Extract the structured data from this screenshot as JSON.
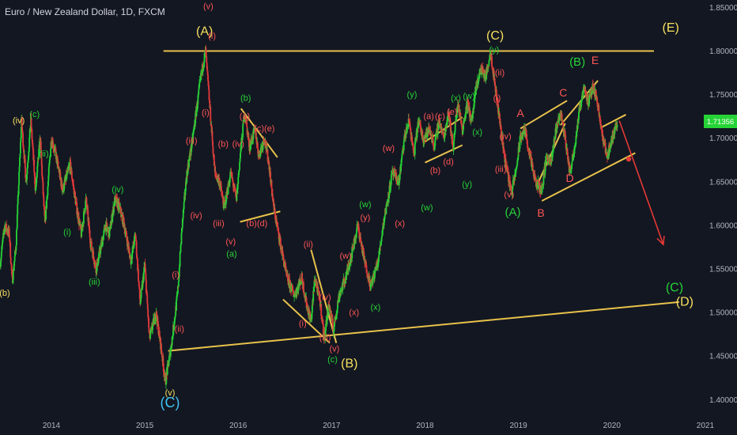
{
  "header": {
    "symbol_title": "Euro / New Zealand Dollar, 1D, FXCM"
  },
  "colors": {
    "background": "#131722",
    "up": "#26d336",
    "down": "#e23b3b",
    "trendline": "#e8c24b",
    "price_tag": "#26d336",
    "arrow": "#e53935"
  },
  "price_tag": {
    "value": "1.71356"
  },
  "chart_data": {
    "type": "candlestick",
    "title": "Euro / New Zealand Dollar, 1D, FXCM",
    "xlabel": "",
    "ylabel": "",
    "xlim": [
      2013.45,
      2020.95
    ],
    "ylim": [
      1.3885,
      1.8585
    ],
    "x_tick_labels": [
      "2014",
      "2015",
      "2016",
      "2017",
      "2018",
      "2019",
      "2020",
      "2021"
    ],
    "x_ticks": [
      2014,
      2015,
      2016,
      2017,
      2018,
      2019,
      2020,
      2021
    ],
    "y_tick_labels": [
      "1.85000",
      "1.80000",
      "1.75000",
      "1.70000",
      "1.65000",
      "1.60000",
      "1.55000",
      "1.50000",
      "1.45000",
      "1.40000"
    ],
    "y_ticks": [
      1.85,
      1.8,
      1.75,
      1.7,
      1.65,
      1.6,
      1.55,
      1.5,
      1.45,
      1.4
    ],
    "path": [
      [
        2013.45,
        1.555
      ],
      [
        2013.5,
        1.6
      ],
      [
        2013.55,
        1.59
      ],
      [
        2013.58,
        1.535
      ],
      [
        2013.62,
        1.575
      ],
      [
        2013.68,
        1.72
      ],
      [
        2013.73,
        1.65
      ],
      [
        2013.78,
        1.72
      ],
      [
        2013.83,
        1.64
      ],
      [
        2013.88,
        1.7
      ],
      [
        2013.93,
        1.6
      ],
      [
        2014.0,
        1.7
      ],
      [
        2014.05,
        1.68
      ],
      [
        2014.12,
        1.64
      ],
      [
        2014.2,
        1.67
      ],
      [
        2014.27,
        1.62
      ],
      [
        2014.32,
        1.59
      ],
      [
        2014.37,
        1.63
      ],
      [
        2014.42,
        1.58
      ],
      [
        2014.48,
        1.55
      ],
      [
        2014.52,
        1.57
      ],
      [
        2014.58,
        1.6
      ],
      [
        2014.62,
        1.59
      ],
      [
        2014.68,
        1.63
      ],
      [
        2014.73,
        1.62
      ],
      [
        2014.78,
        1.6
      ],
      [
        2014.85,
        1.56
      ],
      [
        2014.9,
        1.59
      ],
      [
        2014.95,
        1.51
      ],
      [
        2015.0,
        1.555
      ],
      [
        2015.05,
        1.47
      ],
      [
        2015.12,
        1.5
      ],
      [
        2015.18,
        1.455
      ],
      [
        2015.22,
        1.42
      ],
      [
        2015.28,
        1.46
      ],
      [
        2015.35,
        1.52
      ],
      [
        2015.4,
        1.6
      ],
      [
        2015.45,
        1.66
      ],
      [
        2015.5,
        1.69
      ],
      [
        2015.55,
        1.73
      ],
      [
        2015.6,
        1.77
      ],
      [
        2015.65,
        1.8
      ],
      [
        2015.7,
        1.73
      ],
      [
        2015.75,
        1.66
      ],
      [
        2015.8,
        1.65
      ],
      [
        2015.85,
        1.62
      ],
      [
        2015.92,
        1.66
      ],
      [
        2015.98,
        1.63
      ],
      [
        2016.03,
        1.69
      ],
      [
        2016.07,
        1.73
      ],
      [
        2016.12,
        1.69
      ],
      [
        2016.18,
        1.71
      ],
      [
        2016.22,
        1.68
      ],
      [
        2016.28,
        1.7
      ],
      [
        2016.33,
        1.67
      ],
      [
        2016.38,
        1.62
      ],
      [
        2016.45,
        1.58
      ],
      [
        2016.52,
        1.54
      ],
      [
        2016.6,
        1.52
      ],
      [
        2016.68,
        1.54
      ],
      [
        2016.73,
        1.51
      ],
      [
        2016.78,
        1.49
      ],
      [
        2016.82,
        1.54
      ],
      [
        2016.88,
        1.51
      ],
      [
        2016.92,
        1.47
      ],
      [
        2016.97,
        1.51
      ],
      [
        2017.02,
        1.48
      ],
      [
        2017.08,
        1.52
      ],
      [
        2017.15,
        1.54
      ],
      [
        2017.22,
        1.57
      ],
      [
        2017.28,
        1.6
      ],
      [
        2017.35,
        1.56
      ],
      [
        2017.42,
        1.53
      ],
      [
        2017.5,
        1.56
      ],
      [
        2017.55,
        1.6
      ],
      [
        2017.6,
        1.63
      ],
      [
        2017.65,
        1.66
      ],
      [
        2017.72,
        1.65
      ],
      [
        2017.78,
        1.7
      ],
      [
        2017.83,
        1.72
      ],
      [
        2017.88,
        1.68
      ],
      [
        2017.93,
        1.72
      ],
      [
        2017.98,
        1.7
      ],
      [
        2018.05,
        1.71
      ],
      [
        2018.1,
        1.69
      ],
      [
        2018.15,
        1.72
      ],
      [
        2018.2,
        1.7
      ],
      [
        2018.25,
        1.73
      ],
      [
        2018.3,
        1.69
      ],
      [
        2018.35,
        1.74
      ],
      [
        2018.4,
        1.71
      ],
      [
        2018.45,
        1.74
      ],
      [
        2018.5,
        1.72
      ],
      [
        2018.55,
        1.76
      ],
      [
        2018.6,
        1.78
      ],
      [
        2018.65,
        1.77
      ],
      [
        2018.7,
        1.8
      ],
      [
        2018.75,
        1.76
      ],
      [
        2018.8,
        1.72
      ],
      [
        2018.85,
        1.68
      ],
      [
        2018.9,
        1.65
      ],
      [
        2018.93,
        1.64
      ],
      [
        2018.97,
        1.66
      ],
      [
        2019.02,
        1.7
      ],
      [
        2019.07,
        1.71
      ],
      [
        2019.12,
        1.68
      ],
      [
        2019.18,
        1.65
      ],
      [
        2019.25,
        1.64
      ],
      [
        2019.3,
        1.68
      ],
      [
        2019.35,
        1.67
      ],
      [
        2019.4,
        1.71
      ],
      [
        2019.45,
        1.73
      ],
      [
        2019.5,
        1.7
      ],
      [
        2019.55,
        1.66
      ],
      [
        2019.6,
        1.69
      ],
      [
        2019.65,
        1.73
      ],
      [
        2019.7,
        1.76
      ],
      [
        2019.75,
        1.74
      ],
      [
        2019.8,
        1.76
      ],
      [
        2019.85,
        1.74
      ],
      [
        2019.9,
        1.7
      ],
      [
        2019.95,
        1.68
      ],
      [
        2019.98,
        1.69
      ],
      [
        2020.03,
        1.71
      ],
      [
        2020.06,
        1.72
      ]
    ],
    "trendlines": [
      [
        [
          2015.2,
          1.8
        ],
        [
          2020.45,
          1.8
        ]
      ],
      [
        [
          2015.25,
          1.456
        ],
        [
          2020.72,
          1.512
        ]
      ],
      [
        [
          2016.03,
          1.734
        ],
        [
          2016.42,
          1.678
        ]
      ],
      [
        [
          2016.02,
          1.604
        ],
        [
          2016.45,
          1.616
        ]
      ],
      [
        [
          2016.78,
          1.572
        ],
        [
          2017.05,
          1.465
        ]
      ],
      [
        [
          2016.48,
          1.515
        ],
        [
          2016.98,
          1.465
        ]
      ],
      [
        [
          2018.0,
          1.696
        ],
        [
          2018.4,
          1.724
        ]
      ],
      [
        [
          2018.0,
          1.672
        ],
        [
          2018.4,
          1.692
        ]
      ],
      [
        [
          2019.02,
          1.711
        ],
        [
          2019.52,
          1.743
        ]
      ],
      [
        [
          2019.22,
          1.651
        ],
        [
          2019.5,
          1.717
        ]
      ],
      [
        [
          2019.25,
          1.628
        ],
        [
          2020.25,
          1.683
        ]
      ],
      [
        [
          2019.45,
          1.715
        ],
        [
          2019.85,
          1.766
        ]
      ],
      [
        [
          2019.88,
          1.712
        ],
        [
          2020.15,
          1.727
        ]
      ]
    ],
    "wave_labels": [
      {
        "text": "(v)",
        "x": 2015.68,
        "y": 1.848,
        "color": "#f55"
      },
      {
        "text": "(A)",
        "x": 2015.64,
        "y": 1.818,
        "color": "#f6e05e",
        "size": 16
      },
      {
        "text": "(i)",
        "x": 2015.72,
        "y": 1.814,
        "color": "#f55"
      },
      {
        "text": "(C)",
        "x": 2018.75,
        "y": 1.813,
        "color": "#f6e05e",
        "size": 16
      },
      {
        "text": "(E)",
        "x": 2020.63,
        "y": 1.822,
        "color": "#f6e05e",
        "size": 16
      },
      {
        "text": "(y)",
        "x": 2018.74,
        "y": 1.798,
        "color": "#26d336"
      },
      {
        "text": "(B)",
        "x": 2019.63,
        "y": 1.783,
        "color": "#26d336",
        "size": 15
      },
      {
        "text": "E",
        "x": 2019.82,
        "y": 1.785,
        "color": "#f55",
        "size": 14
      },
      {
        "text": "(ii)",
        "x": 2018.8,
        "y": 1.772,
        "color": "#f55"
      },
      {
        "text": "C",
        "x": 2019.48,
        "y": 1.748,
        "color": "#f55",
        "size": 14
      },
      {
        "text": "(y)",
        "x": 2017.86,
        "y": 1.747,
        "color": "#26d336"
      },
      {
        "text": "(b)",
        "x": 2016.08,
        "y": 1.743,
        "color": "#26d336"
      },
      {
        "text": "(x)",
        "x": 2018.33,
        "y": 1.743,
        "color": "#26d336"
      },
      {
        "text": "(w)",
        "x": 2018.47,
        "y": 1.745,
        "color": "#26d336"
      },
      {
        "text": "(i)",
        "x": 2018.77,
        "y": 1.743,
        "color": "#f55"
      },
      {
        "text": "(a)",
        "x": 2018.04,
        "y": 1.722,
        "color": "#f55"
      },
      {
        "text": "(c)",
        "x": 2018.16,
        "y": 1.722,
        "color": "#f55"
      },
      {
        "text": "(e)",
        "x": 2018.29,
        "y": 1.727,
        "color": "#f55"
      },
      {
        "text": "A",
        "x": 2019.02,
        "y": 1.724,
        "color": "#f55",
        "size": 14
      },
      {
        "text": "(iv)",
        "x": 2013.65,
        "y": 1.717,
        "color": "#f6e05e"
      },
      {
        "text": "(c)",
        "x": 2013.82,
        "y": 1.724,
        "color": "#26d336"
      },
      {
        "text": "(a)",
        "x": 2016.07,
        "y": 1.722,
        "color": "#f55"
      },
      {
        "text": "(i)",
        "x": 2015.65,
        "y": 1.726,
        "color": "#f55"
      },
      {
        "text": "(c)(e)",
        "x": 2016.28,
        "y": 1.708,
        "color": "#f55"
      },
      {
        "text": "(iii)",
        "x": 2015.5,
        "y": 1.694,
        "color": "#f55"
      },
      {
        "text": "(b)",
        "x": 2015.84,
        "y": 1.69,
        "color": "#f55"
      },
      {
        "text": "(iv)",
        "x": 2016.0,
        "y": 1.69,
        "color": "#f55"
      },
      {
        "text": "(x)",
        "x": 2018.56,
        "y": 1.704,
        "color": "#26d336"
      },
      {
        "text": "(iv)",
        "x": 2018.86,
        "y": 1.699,
        "color": "#f55"
      },
      {
        "text": "(w)",
        "x": 2017.61,
        "y": 1.685,
        "color": "#f55"
      },
      {
        "text": "(ii)",
        "x": 2013.92,
        "y": 1.679,
        "color": "#26d336"
      },
      {
        "text": "(b)",
        "x": 2018.11,
        "y": 1.66,
        "color": "#f55"
      },
      {
        "text": "(d)",
        "x": 2018.25,
        "y": 1.67,
        "color": "#f55"
      },
      {
        "text": "(iii)",
        "x": 2018.81,
        "y": 1.661,
        "color": "#f55"
      },
      {
        "text": "D",
        "x": 2019.55,
        "y": 1.65,
        "color": "#f55",
        "size": 14
      },
      {
        "text": "(y)",
        "x": 2018.45,
        "y": 1.644,
        "color": "#26d336"
      },
      {
        "text": "(iv)",
        "x": 2014.71,
        "y": 1.638,
        "color": "#26d336"
      },
      {
        "text": "(v)",
        "x": 2018.9,
        "y": 1.632,
        "color": "#f55"
      },
      {
        "text": "(w)",
        "x": 2017.36,
        "y": 1.621,
        "color": "#26d336"
      },
      {
        "text": "(w)",
        "x": 2018.02,
        "y": 1.617,
        "color": "#26d336"
      },
      {
        "text": "(A)",
        "x": 2018.94,
        "y": 1.611,
        "color": "#26d336",
        "size": 15
      },
      {
        "text": "B",
        "x": 2019.24,
        "y": 1.61,
        "color": "#f55",
        "size": 14
      },
      {
        "text": "(y)",
        "x": 2017.36,
        "y": 1.606,
        "color": "#f55"
      },
      {
        "text": "(iii)",
        "x": 2015.79,
        "y": 1.599,
        "color": "#f55"
      },
      {
        "text": "(b)(d)",
        "x": 2016.2,
        "y": 1.599,
        "color": "#f55"
      },
      {
        "text": "(iv)",
        "x": 2015.55,
        "y": 1.608,
        "color": "#f55"
      },
      {
        "text": "(x)",
        "x": 2017.73,
        "y": 1.599,
        "color": "#f55"
      },
      {
        "text": "(i)",
        "x": 2014.17,
        "y": 1.589,
        "color": "#26d336"
      },
      {
        "text": "(v)",
        "x": 2015.92,
        "y": 1.578,
        "color": "#f55"
      },
      {
        "text": "(ii)",
        "x": 2016.75,
        "y": 1.575,
        "color": "#f55"
      },
      {
        "text": "(a)",
        "x": 2015.93,
        "y": 1.564,
        "color": "#26d336"
      },
      {
        "text": "(w)",
        "x": 2017.15,
        "y": 1.562,
        "color": "#f55"
      },
      {
        "text": "(i)",
        "x": 2015.33,
        "y": 1.54,
        "color": "#f55"
      },
      {
        "text": "(iii)",
        "x": 2014.46,
        "y": 1.532,
        "color": "#26d336"
      },
      {
        "text": "(iv)",
        "x": 2016.93,
        "y": 1.514,
        "color": "#f55"
      },
      {
        "text": "(b)",
        "x": 2013.5,
        "y": 1.519,
        "color": "#f6e05e"
      },
      {
        "text": "(x)",
        "x": 2017.24,
        "y": 1.497,
        "color": "#f55"
      },
      {
        "text": "(x)",
        "x": 2017.47,
        "y": 1.503,
        "color": "#26d336"
      },
      {
        "text": "(i)",
        "x": 2016.69,
        "y": 1.484,
        "color": "#f55"
      },
      {
        "text": "(ii)",
        "x": 2015.37,
        "y": 1.478,
        "color": "#f55"
      },
      {
        "text": "(iii)",
        "x": 2016.93,
        "y": 1.468,
        "color": "#f55"
      },
      {
        "text": "(v)",
        "x": 2017.03,
        "y": 1.455,
        "color": "#f55"
      },
      {
        "text": "(c)",
        "x": 2017.01,
        "y": 1.443,
        "color": "#26d336"
      },
      {
        "text": "(B)",
        "x": 2017.19,
        "y": 1.437,
        "color": "#f6e05e",
        "size": 16
      },
      {
        "text": "(C)",
        "x": 2020.67,
        "y": 1.524,
        "color": "#26d336",
        "size": 16
      },
      {
        "text": "(D)",
        "x": 2020.78,
        "y": 1.508,
        "color": "#f6e05e",
        "size": 16
      },
      {
        "text": "(v)",
        "x": 2015.27,
        "y": 1.405,
        "color": "#f6e05e"
      },
      {
        "text": "(C)",
        "x": 2015.27,
        "y": 1.391,
        "color": "#3ec3f3",
        "size": 18
      }
    ],
    "projection_arrow": [
      [
        2020.08,
        1.72
      ],
      [
        2020.55,
        1.578
      ]
    ],
    "projection_point": [
      2020.18,
      1.676
    ]
  }
}
